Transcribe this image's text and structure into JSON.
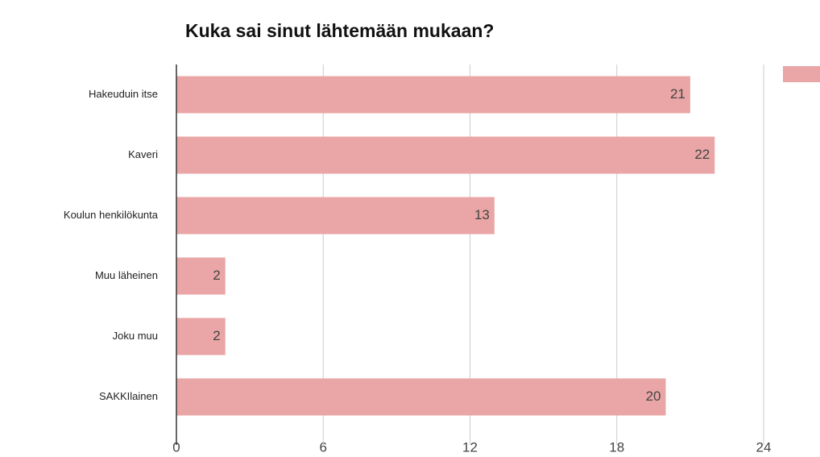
{
  "chart_data": {
    "type": "bar",
    "orientation": "horizontal",
    "title": "Kuka sai sinut lähtemään mukaan?",
    "categories": [
      "Hakeuduin itse",
      "Kaveri",
      "Koulun henkilökunta",
      "Muu läheinen",
      "Joku muu",
      "SAKKIlainen"
    ],
    "values": [
      21,
      22,
      13,
      2,
      2,
      20
    ],
    "color": "#eaa6a6",
    "xlim": [
      0,
      24
    ],
    "xticks": [
      0,
      6,
      12,
      18,
      24
    ],
    "grid": true
  }
}
